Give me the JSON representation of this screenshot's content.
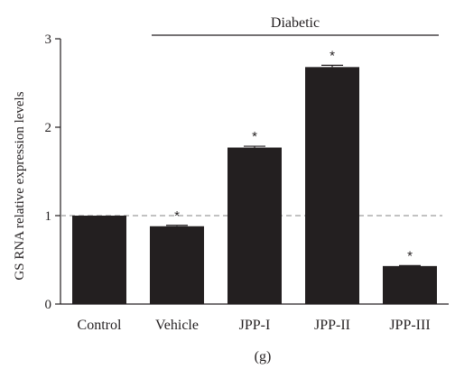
{
  "chart_data": {
    "type": "bar",
    "categories": [
      "Control",
      "Vehicle",
      "JPP-I",
      "JPP-II",
      "JPP-III"
    ],
    "values": [
      1.0,
      0.88,
      1.77,
      2.68,
      0.43
    ],
    "errors": [
      0.0,
      0.01,
      0.015,
      0.02,
      0.005
    ],
    "significance": [
      "",
      "*",
      "*",
      "*",
      "*"
    ],
    "ylabel": "GS RNA relative expression levels",
    "yticks": [
      0,
      1,
      2,
      3
    ],
    "ylim": [
      0,
      3
    ],
    "reference_line": 1,
    "group_label": "Diabetic",
    "group_categories": [
      "Vehicle",
      "JPP-I",
      "JPP-II",
      "JPP-III"
    ],
    "panel_label": "(g)",
    "colors": {
      "bar": "#231f20",
      "reference_line": "#9d9d9d",
      "axis": "#231f20"
    }
  }
}
